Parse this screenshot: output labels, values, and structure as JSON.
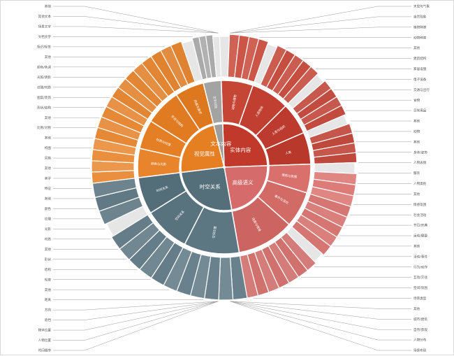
{
  "chart_data": {
    "type": "sunburst",
    "title": "",
    "categories": [
      {
        "name": "实体内容",
        "color": "#c0392b",
        "subcategories": [
          {
            "name": "动物与植物",
            "color": "#c64636",
            "leaves": [
              "其他",
              "其他自然",
              "自然现象",
              "天空与气候",
              "其他动物"
            ]
          },
          {
            "name": "人造物体",
            "color": "#c13f31",
            "leaves": [
              "其他",
              "装置设施",
              "建筑",
              "交通工具",
              "电子设备",
              "家居设施"
            ]
          },
          {
            "name": "人类与组织",
            "color": "#bc3b2e",
            "leaves": [
              "其他",
              "群体",
              "组织",
              "职业",
              "人物"
            ]
          },
          {
            "name": "人类",
            "color": "#b9382c",
            "leaves": [
              "其他",
              "人物身体",
              "人体部位",
              "表情姿态",
              "服装"
            ]
          }
        ]
      },
      {
        "name": "高级语义",
        "color": "#d66b6b",
        "subcategories": [
          {
            "name": "情感与氛围",
            "color": "#d9706c",
            "leaves": [
              "其他",
              "情感",
              "氛围",
              "情绪"
            ]
          },
          {
            "name": "事件与活动",
            "color": "#d26a66",
            "leaves": [
              "运动/健康",
              "节日/活动",
              "行为与交互",
              "社会活动",
              "日常生活"
            ]
          },
          {
            "name": "场景与情境",
            "color": "#cc6561",
            "leaves": [
              "其他",
              "室内场景",
              "户外场景",
              "城市景观",
              "自然风光",
              "其他场景",
              "家居场景",
              "场景主题"
            ]
          }
        ]
      },
      {
        "name": "时空关系",
        "color": "#546e7a",
        "subcategories": [
          {
            "name": "空间位置",
            "color": "#5c7682",
            "leaves": [
              "左/右",
              "上/下",
              "前/后",
              "内/外",
              "远/近",
              "中心"
            ]
          },
          {
            "name": "空间关系",
            "color": "#58727e",
            "leaves": [
              "人-物交互",
              "物-物交互",
              "遮挡",
              "方向",
              "距离"
            ]
          },
          {
            "name": "时间关系",
            "color": "#536d79",
            "leaves": [
              "其他",
              "先后",
              "同时",
              "持续"
            ]
          }
        ]
      },
      {
        "name": "视觉属性",
        "color": "#e67e22",
        "subcategories": [
          {
            "name": "颜色与光影",
            "color": "#e8852c",
            "leaves": [
              "颜色",
              "光照",
              "阴影",
              "色调"
            ]
          },
          {
            "name": "材质与纹理",
            "color": "#e47f26",
            "leaves": [
              "材质",
              "纹理",
              "图案",
              "表面"
            ]
          },
          {
            "name": "形状与结构",
            "color": "#e07b22",
            "leaves": [
              "形状",
              "结构",
              "轮廓",
              "比例",
              "对称"
            ]
          },
          {
            "name": "风格与美学",
            "color": "#dd781f",
            "leaves": [
              "风格",
              "构图",
              "美学",
              "其他"
            ]
          }
        ]
      },
      {
        "name": "文本内容",
        "color": "#9e9e9e",
        "subcategories": [
          {
            "name": "文字识别",
            "color": "#a3a3a3",
            "leaves": [
              "场景文字",
              "文档文字",
              "标识",
              "其他"
            ]
          }
        ]
      }
    ],
    "label_lines": {
      "right": [
        "天空与气象",
        "自然现象",
        "植物种类",
        "动物种类",
        "其他",
        "建筑结构",
        "家居设施",
        "电子设备",
        "交通与出行",
        "食物",
        "日常用品",
        "其他",
        "动物",
        "其他",
        "身体/姿势",
        "人物表情",
        "服装",
        "人物类别",
        "其他",
        "情感氛围",
        "社会活动",
        "节日/庆典",
        "运动/健康",
        "其他",
        "活动/事件",
        "行为/动作",
        "互动/交往",
        "空间/氛围",
        "场景类型",
        "其他",
        "城市/建筑",
        "自然/景观",
        "人物分布",
        "场景布局"
      ],
      "left": [
        "其他",
        "其他文本",
        "场景文字",
        "文档文字",
        "标识/标签",
        "其他",
        "颜色/色调",
        "光照/阴影",
        "纹理/材质",
        "图案/装饰",
        "形状/结构",
        "其他",
        "比例/对称",
        "其他",
        "构图",
        "风格",
        "其他",
        "美学",
        "特征",
        "其他",
        "颜色",
        "纹理",
        "光影",
        "材质",
        "其他",
        "形状",
        "结构",
        "轮廓",
        "其他",
        "距离",
        "方向",
        "遮挡",
        "物体位置",
        "人物位置",
        "时间顺序"
      ]
    }
  }
}
